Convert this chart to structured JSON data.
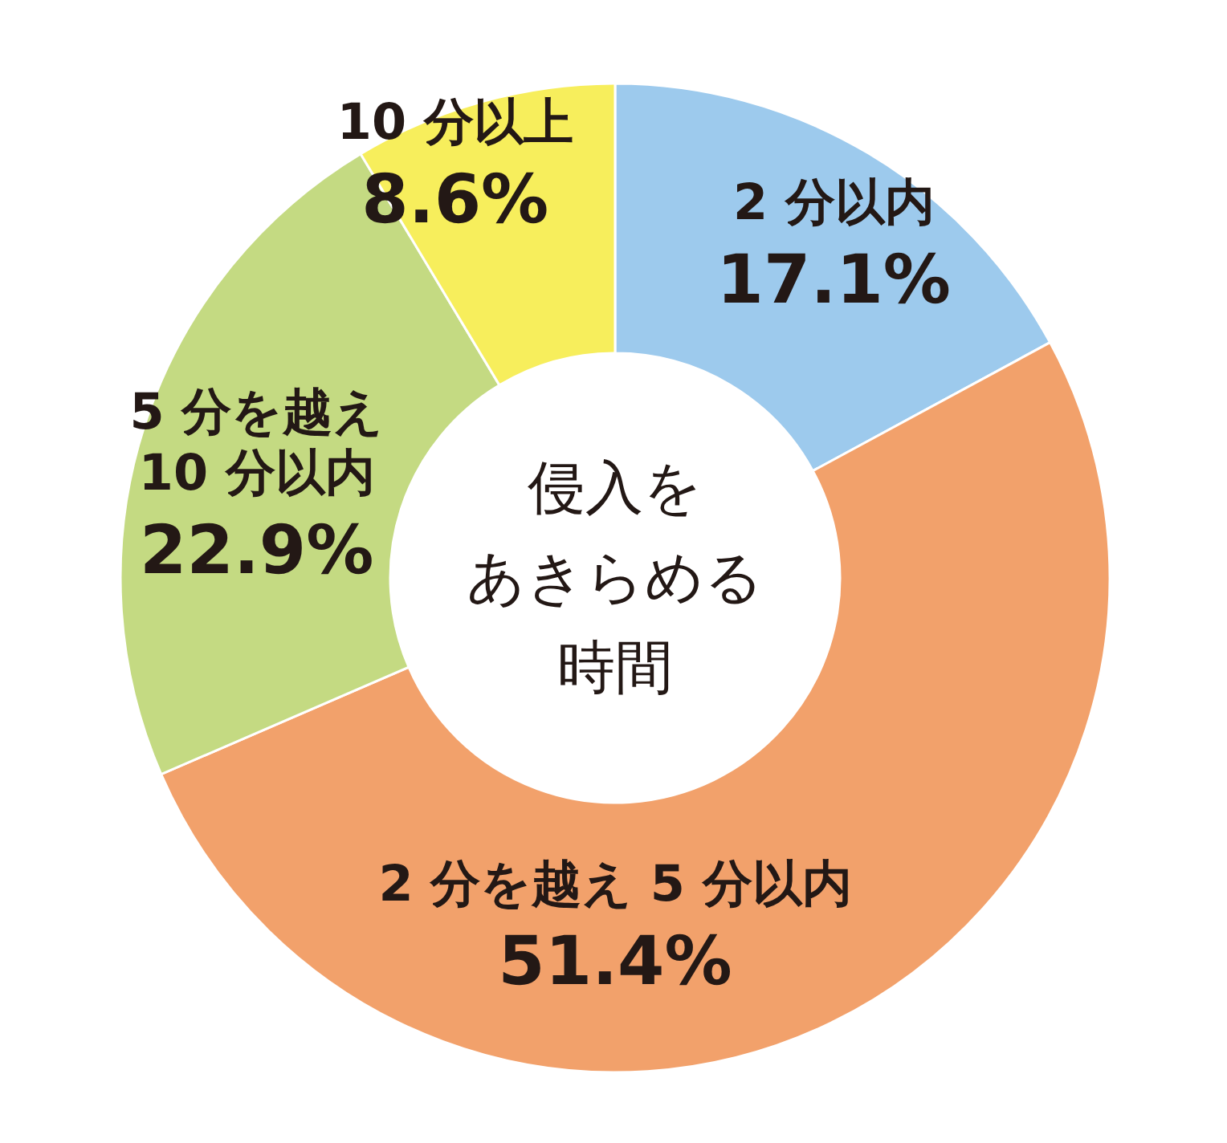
{
  "chart_data": {
    "type": "donut",
    "title": "侵入をあきらめる時間",
    "categories": [
      "2 分以内",
      "2 分を越え 5 分以内",
      "5 分を越え\n10 分以内",
      "10 分以上"
    ],
    "values": [
      17.1,
      51.4,
      22.9,
      8.6
    ],
    "colors": [
      "#9dcaed",
      "#f2a16b",
      "#c4da82",
      "#f7ee5c"
    ],
    "value_labels": [
      "17.1%",
      "51.4%",
      "22.9%",
      "8.6%"
    ]
  }
}
